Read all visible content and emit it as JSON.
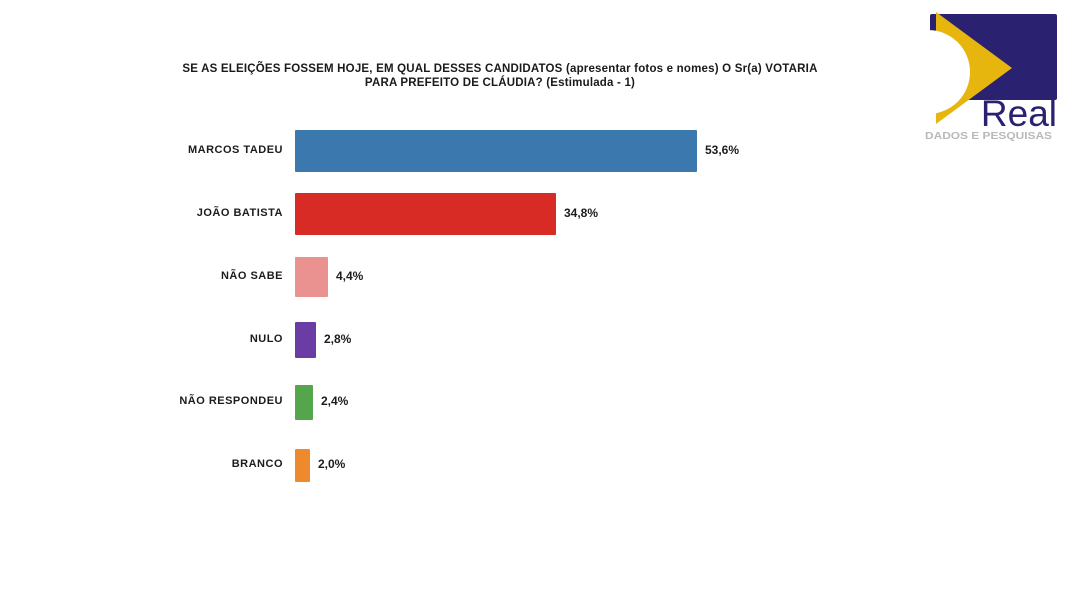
{
  "page": {
    "background": "#ffffff"
  },
  "title": {
    "line1": "SE AS ELEIÇÕES FOSSEM HOJE, EM QUAL DESSES CANDIDATOS (apresentar fotos e nomes) O Sr(a) VOTARIA",
    "line2": "PARA PREFEITO DE CLÁUDIA? (Estimulada - 1)"
  },
  "logo": {
    "brand": "Real",
    "tagline": "DADOS E PESQUISAS",
    "colors": {
      "navy": "#2a2171",
      "gold": "#e6b50e",
      "tagline_gray": "#b9b9b9"
    }
  },
  "chart_data": {
    "type": "bar",
    "orientation": "horizontal",
    "title": "SE AS ELEIÇÕES FOSSEM HOJE, EM QUAL DESSES CANDIDATOS (apresentar fotos e nomes) O Sr(a) VOTARIA PARA PREFEITO DE CLÁUDIA? (Estimulada - 1)",
    "categories": [
      "MARCOS TADEU",
      "JOÃO BATISTA",
      "NÃO SABE",
      "NULO",
      "NÃO RESPONDEU",
      "BRANCO"
    ],
    "values": [
      53.6,
      34.8,
      4.4,
      2.8,
      2.4,
      2.0
    ],
    "value_labels": [
      "53,6%",
      "34,8%",
      "4,4%",
      "2,8%",
      "2,4%",
      "2,0%"
    ],
    "bar_colors": [
      "#3a78ae",
      "#d92b26",
      "#e9928f",
      "#6a3da5",
      "#54a54b",
      "#ee8a2d"
    ],
    "xlim": [
      0,
      60
    ],
    "grid": false,
    "legend": false,
    "value_label_position": "right-of-bar"
  }
}
